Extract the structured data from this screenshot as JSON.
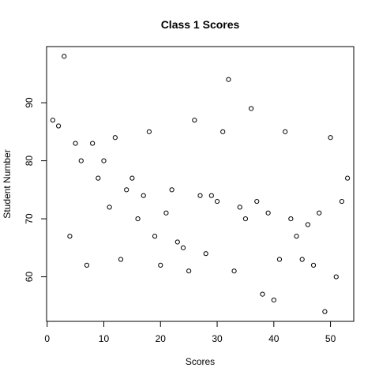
{
  "chart_data": {
    "type": "scatter",
    "title": "Class 1 Scores",
    "xlabel": "Scores",
    "ylabel": "Student Number",
    "xlim": [
      -0.1,
      54.1
    ],
    "ylim": [
      52.32,
      99.68
    ],
    "x_ticks": [
      0,
      10,
      20,
      30,
      40,
      50
    ],
    "y_ticks": [
      60,
      70,
      80,
      90
    ],
    "grid": false,
    "legend": "none",
    "marker": "open-circle",
    "series": [
      {
        "x": [
          1,
          2,
          3,
          4,
          5,
          6,
          7,
          8,
          9,
          10,
          11,
          12,
          13,
          14,
          15,
          16,
          17,
          18,
          19,
          20,
          21,
          22,
          23,
          24,
          25,
          26,
          27,
          28,
          29,
          30,
          31,
          32,
          33,
          34,
          35,
          36,
          37,
          38,
          39,
          40,
          41,
          42,
          43,
          44,
          45,
          46,
          47,
          48,
          49,
          50,
          51,
          52,
          53
        ],
        "y": [
          87,
          86,
          98,
          67,
          83,
          80,
          62,
          83,
          77,
          80,
          72,
          84,
          63,
          75,
          77,
          70,
          74,
          85,
          67,
          62,
          71,
          75,
          66,
          65,
          61,
          87,
          74,
          64,
          74,
          73,
          85,
          94,
          61,
          72,
          70,
          89,
          73,
          57,
          71,
          56,
          63,
          85,
          70,
          67,
          63,
          69,
          62,
          71,
          54,
          84,
          60,
          73,
          77
        ]
      }
    ]
  }
}
